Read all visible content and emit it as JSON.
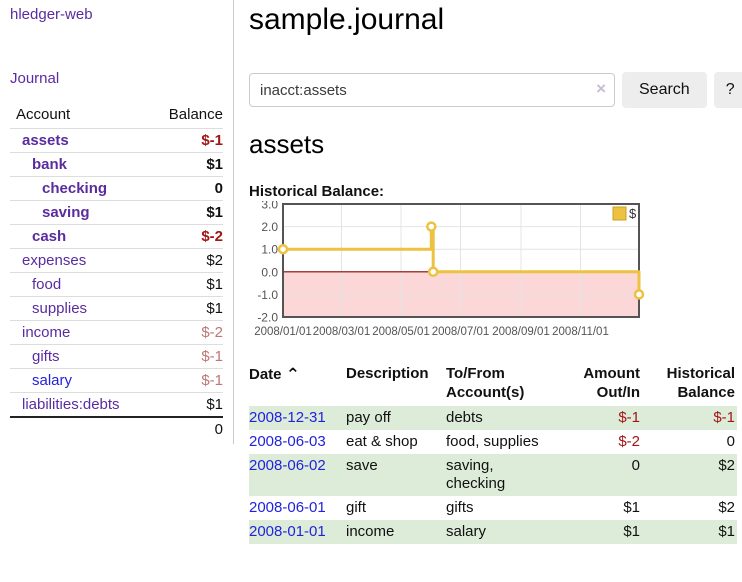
{
  "app": {
    "brand": "hledger-web"
  },
  "nav": {
    "journal": "Journal"
  },
  "icons": {
    "sort_ascending": "⌃",
    "clear": "×",
    "help": "?"
  },
  "colors": {
    "link_purple": "#5a2ca0",
    "link_blue": "#2222dd",
    "negative_strong": "#a31515",
    "negative_soft": "#bf7575",
    "row_green": "#ddecd8",
    "series_yellow": "#edc240"
  },
  "sidebar": {
    "headers": {
      "account": "Account",
      "balance": "Balance"
    },
    "rows": [
      {
        "label": "assets",
        "depth": 1,
        "bold": true,
        "link": "purple",
        "balance": "$-1",
        "balance_class": "neg-strong"
      },
      {
        "label": "bank",
        "depth": 2,
        "bold": true,
        "link": "purple",
        "balance": "$1",
        "balance_class": ""
      },
      {
        "label": "checking",
        "depth": 3,
        "bold": true,
        "link": "purple",
        "balance": "0",
        "balance_class": ""
      },
      {
        "label": "saving",
        "depth": 3,
        "bold": true,
        "link": "purple",
        "balance": "$1",
        "balance_class": ""
      },
      {
        "label": "cash",
        "depth": 2,
        "bold": true,
        "link": "purple",
        "balance": "$-2",
        "balance_class": "neg-strong"
      },
      {
        "label": "expenses",
        "depth": 1,
        "bold": false,
        "link": "purple",
        "balance": "$2",
        "balance_class": ""
      },
      {
        "label": "food",
        "depth": 2,
        "bold": false,
        "link": "purple",
        "balance": "$1",
        "balance_class": ""
      },
      {
        "label": "supplies",
        "depth": 2,
        "bold": false,
        "link": "purple",
        "balance": "$1",
        "balance_class": ""
      },
      {
        "label": "income",
        "depth": 1,
        "bold": false,
        "link": "purple",
        "balance": "$-2",
        "balance_class": "neg-soft"
      },
      {
        "label": "gifts",
        "depth": 2,
        "bold": false,
        "link": "purple",
        "balance": "$-1",
        "balance_class": "neg-soft"
      },
      {
        "label": "salary",
        "depth": 2,
        "bold": false,
        "link": "blue",
        "balance": "$-1",
        "balance_class": "neg-soft"
      },
      {
        "label": "liabilities:debts",
        "depth": 1,
        "bold": false,
        "link": "purple",
        "balance": "$1",
        "balance_class": ""
      }
    ],
    "total": "0"
  },
  "main": {
    "title": "sample.journal",
    "search": {
      "value": "inacct:assets",
      "button": "Search",
      "help": "?"
    },
    "account_heading": "assets",
    "chart_label": "Historical Balance:"
  },
  "register": {
    "headers": {
      "date": "Date",
      "description": "Description",
      "accounts": "To/From\nAccount(s)",
      "amount": "Amount\nOut/In",
      "balance": "Historical\nBalance"
    },
    "rows": [
      {
        "date": "2008-12-31",
        "description": "pay off",
        "accounts": "debts",
        "amount": "$-1",
        "amount_neg": true,
        "balance": "$-1",
        "balance_neg": true
      },
      {
        "date": "2008-06-03",
        "description": "eat & shop",
        "accounts": "food, supplies",
        "amount": "$-2",
        "amount_neg": true,
        "balance": "0",
        "balance_neg": false
      },
      {
        "date": "2008-06-02",
        "description": "save",
        "accounts": "saving, checking",
        "amount": "0",
        "amount_neg": false,
        "balance": "$2",
        "balance_neg": false
      },
      {
        "date": "2008-06-01",
        "description": "gift",
        "accounts": "gifts",
        "amount": "$1",
        "amount_neg": false,
        "balance": "$2",
        "balance_neg": false
      },
      {
        "date": "2008-01-01",
        "description": "income",
        "accounts": "salary",
        "amount": "$1",
        "amount_neg": false,
        "balance": "$1",
        "balance_neg": false
      }
    ]
  },
  "chart_data": {
    "type": "line",
    "step": true,
    "title": "Historical Balance:",
    "x_start": "2008-01-01",
    "x_end": "2008-12-31",
    "ylim": [
      -2,
      3
    ],
    "y_ticks": [
      3,
      2,
      1,
      0,
      -1,
      -2
    ],
    "x_ticks": [
      {
        "date": "2008-01-01",
        "label": "2008/01/01"
      },
      {
        "date": "2008-03-01",
        "label": "2008/03/01"
      },
      {
        "date": "2008-05-01",
        "label": "2008/05/01"
      },
      {
        "date": "2008-07-01",
        "label": "2008/07/01"
      },
      {
        "date": "2008-09-01",
        "label": "2008/09/01"
      },
      {
        "date": "2008-11-01",
        "label": "2008/11/01"
      }
    ],
    "series": [
      {
        "name": "$",
        "color": "#edc240",
        "points": [
          {
            "date": "2008-01-01",
            "value": 1
          },
          {
            "date": "2008-06-01",
            "value": 2
          },
          {
            "date": "2008-06-03",
            "value": 0
          },
          {
            "date": "2008-12-31",
            "value": -1
          }
        ]
      }
    ],
    "legend": {
      "label": "$",
      "swatch_color": "#edc240",
      "position": "top-right"
    },
    "grid": true,
    "grid_color": "#e4e4e4",
    "border_color": "#545454",
    "zero_line_color": "#8b0000",
    "negative_fill": "#fbd7d7"
  }
}
